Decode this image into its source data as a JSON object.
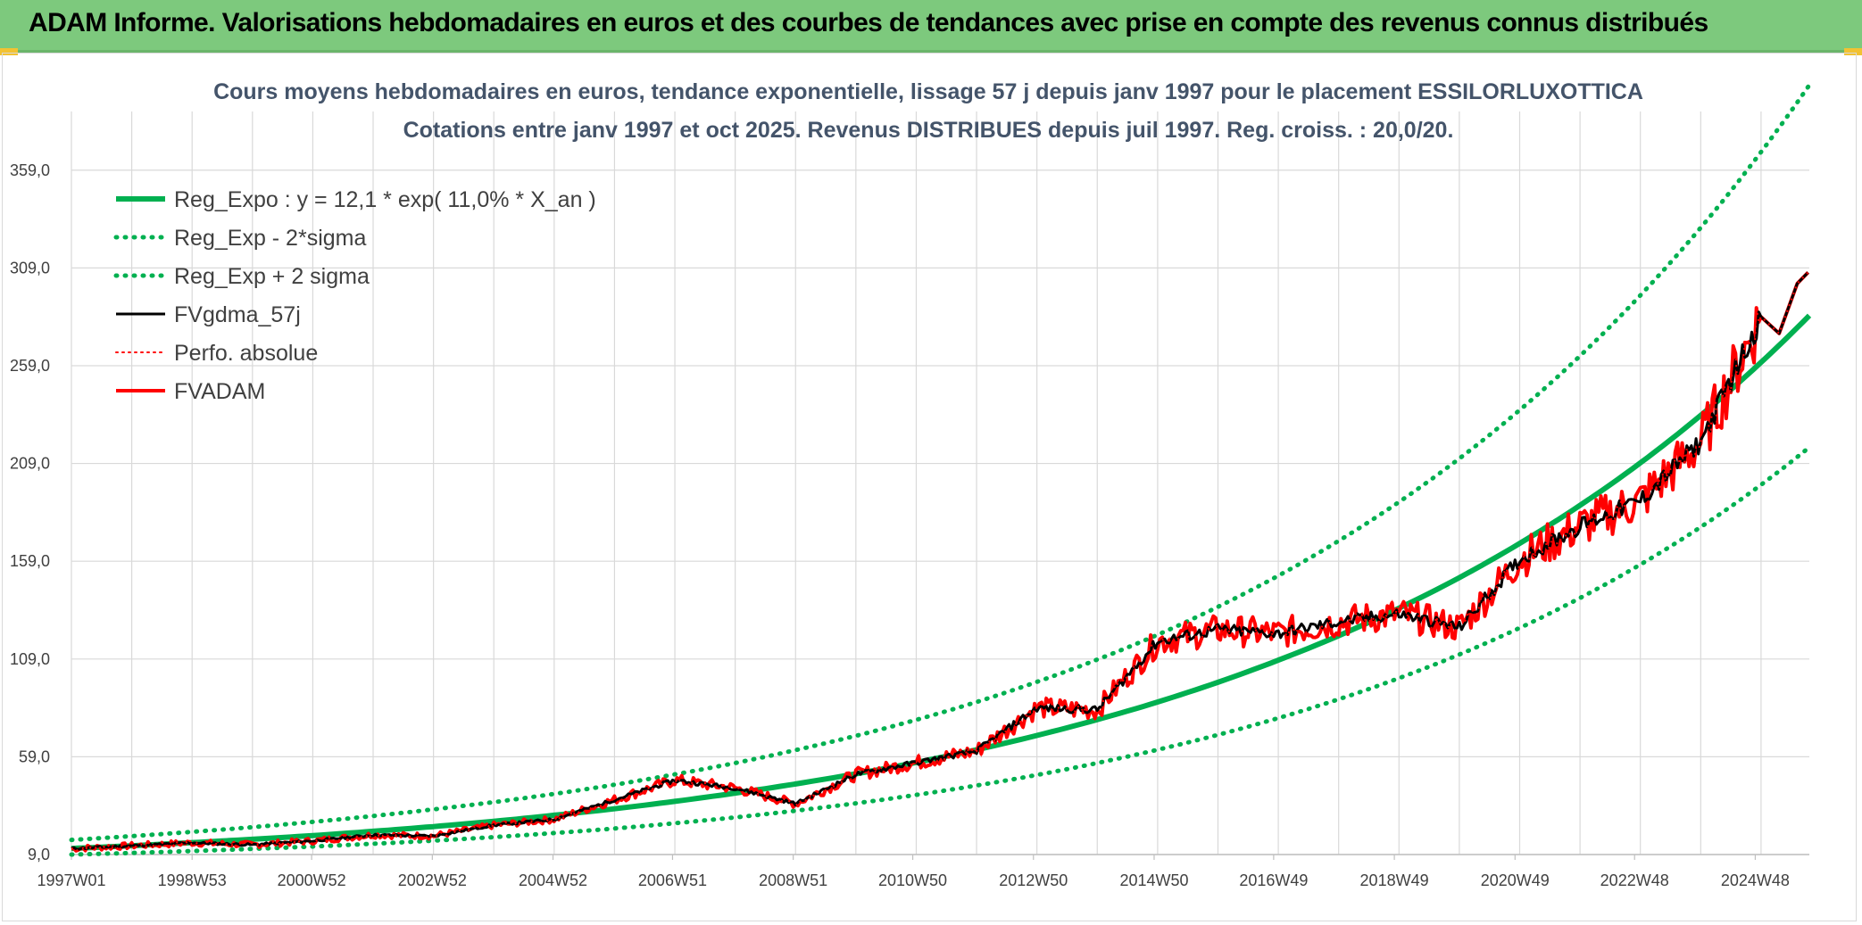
{
  "banner": {
    "title": "ADAM Informe. Valorisations hebdomadaires en euros et des courbes de tendances avec prise en compte des revenus connus distribués"
  },
  "colors": {
    "banner": "#7dc97d",
    "trend": "#00b050",
    "fvgdma": "#000000",
    "fvadam": "#ff0000",
    "perfo": "#ff0000",
    "grid": "#d9d9d9",
    "title": "#44546a"
  },
  "chart_data": {
    "type": "line",
    "title": "Cours moyens hebdomadaires en euros, tendance exponentielle, lissage 57 j depuis janv 1997 pour le placement ESSILORLUXOTTICA",
    "subtitle": "Cotations entre janv 1997 et oct 2025. Revenus DISTRIBUES depuis juil 1997. Reg. croiss. : 20,0/20.",
    "xlabel": "",
    "ylabel": "",
    "x_range": [
      "1997W01",
      "2025W43"
    ],
    "x_tick_labels": [
      "1997W01",
      "1998W53",
      "2000W52",
      "2002W52",
      "2004W52",
      "2006W51",
      "2008W51",
      "2010W50",
      "2012W50",
      "2014W50",
      "2016W49",
      "2018W49",
      "2020W49",
      "2022W48",
      "2024W48"
    ],
    "ylim": [
      9,
      389
    ],
    "y_tick_labels": [
      "9,0",
      "59,0",
      "109,0",
      "159,0",
      "209,0",
      "259,0",
      "309,0",
      "359,0"
    ],
    "grid": true,
    "legend_position": "top-left",
    "x_years": [
      1997,
      1998,
      1999,
      2000,
      2001,
      2002,
      2003,
      2004,
      2005,
      2006,
      2007,
      2008,
      2009,
      2010,
      2011,
      2012,
      2013,
      2014,
      2015,
      2016,
      2017,
      2018,
      2019,
      2020,
      2021,
      2022,
      2023,
      2024,
      2025
    ],
    "series": [
      {
        "name": "Reg_Expo : y = 12,1 * exp( 11,0% *  X_an )",
        "style": "solid-thick",
        "values": [
          12.1,
          13.5,
          15.1,
          16.8,
          18.7,
          20.9,
          23.3,
          26.0,
          29.1,
          32.4,
          36.2,
          40.4,
          45.1,
          50.3,
          56.1,
          62.6,
          69.9,
          78.0,
          87.0,
          97.1,
          108.4,
          120.9,
          135.0,
          150.6,
          168.1,
          187.6,
          209.3,
          233.6,
          260.7
        ]
      },
      {
        "name": "Reg_Exp - 2*sigma",
        "style": "dotted",
        "values": [
          9.0,
          9.8,
          10.8,
          11.9,
          13.1,
          14.5,
          16.1,
          17.9,
          20.0,
          22.3,
          25.0,
          28.0,
          31.4,
          35.2,
          39.5,
          44.3,
          49.7,
          55.8,
          62.6,
          70.2,
          78.8,
          88.4,
          99.2,
          111.3,
          124.9,
          140.2,
          157.3,
          176.5,
          198.1
        ]
      },
      {
        "name": "Reg_Exp + 2 sigma",
        "style": "dotted",
        "values": [
          16.5,
          18.4,
          20.6,
          23.0,
          25.7,
          28.7,
          32.1,
          35.8,
          40.0,
          44.7,
          50.0,
          55.8,
          62.4,
          69.7,
          77.9,
          87.0,
          97.3,
          108.7,
          121.4,
          135.7,
          151.6,
          169.4,
          189.3,
          211.5,
          236.3,
          264.0,
          295.0,
          329.6,
          368.3
        ]
      },
      {
        "name": "FVgdma_57j",
        "style": "solid",
        "values": [
          12.0,
          13.5,
          15.0,
          14.0,
          16.0,
          19.0,
          18.5,
          24.0,
          27.0,
          37.0,
          47.0,
          43.0,
          35.0,
          50.0,
          56.0,
          62.0,
          84.0,
          83.0,
          118.0,
          124.0,
          122.0,
          128.0,
          132.0,
          125.0,
          160.0,
          177.0,
          190.0,
          220.0,
          284.0
        ]
      },
      {
        "name": "Perfo. absolue",
        "style": "dotted",
        "values": [
          12.0,
          13.5,
          15.0,
          14.0,
          16.0,
          19.0,
          18.5,
          24.0,
          27.0,
          37.0,
          47.0,
          43.0,
          35.0,
          50.0,
          56.0,
          62.0,
          84.0,
          83.0,
          118.0,
          124.0,
          122.0,
          128.0,
          132.0,
          125.0,
          160.0,
          177.0,
          190.0,
          220.0,
          284.0
        ]
      },
      {
        "name": "FVADAM",
        "style": "solid-thick",
        "values": [
          12.0,
          13.5,
          15.0,
          14.0,
          16.0,
          19.0,
          18.5,
          24.0,
          27.0,
          37.0,
          47.0,
          43.0,
          35.0,
          50.0,
          56.0,
          62.0,
          84.0,
          83.0,
          118.0,
          124.0,
          122.0,
          128.0,
          132.0,
          125.0,
          160.0,
          177.0,
          190.0,
          220.0,
          284.0
        ]
      }
    ]
  }
}
